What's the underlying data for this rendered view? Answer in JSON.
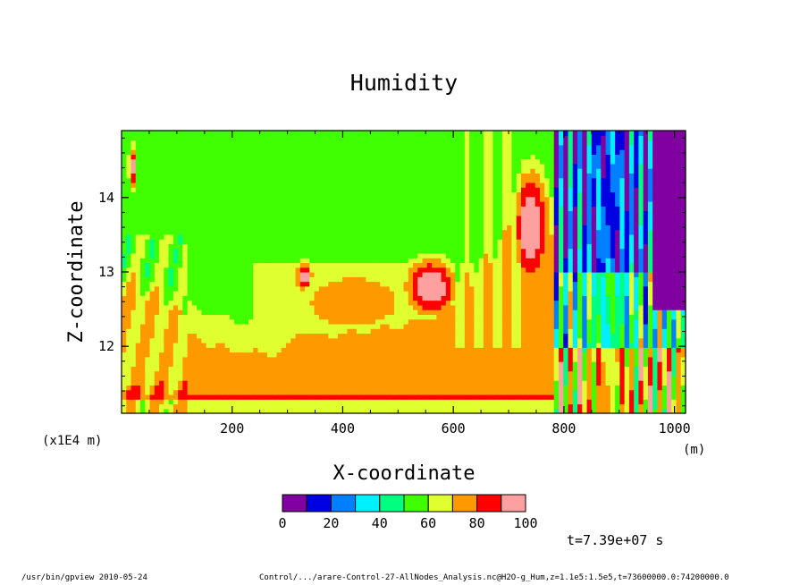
{
  "chart_data": {
    "type": "heatmap",
    "title": "Humidity",
    "xlabel": "X-coordinate",
    "ylabel": "Z-coordinate",
    "x_unit": "(m)",
    "y_unit": "(x1E4 m)",
    "xlim": [
      0,
      1020
    ],
    "ylim": [
      11.1,
      14.9
    ],
    "x_ticks": [
      "200",
      "400",
      "600",
      "800",
      "1000"
    ],
    "y_ticks": [
      "12",
      "13",
      "14"
    ],
    "legend": {
      "levels": [
        0,
        10,
        20,
        30,
        40,
        50,
        60,
        70,
        80,
        90,
        100
      ],
      "labels": [
        "0",
        "20",
        "40",
        "60",
        "80",
        "100"
      ],
      "colors": [
        "#8000a0",
        "#0000e0",
        "#0080ff",
        "#00f0ff",
        "#00ff80",
        "#40ff00",
        "#e0ff30",
        "#ff9900",
        "#ff0000",
        "#ffa0a0"
      ]
    },
    "time_label": "t=7.39e+07 s"
  },
  "footer": {
    "left": "/usr/bin/gpview  2010-05-24",
    "right": "Control/.../arare-Control-27-AllNodes_Analysis.nc@H2O-g_Hum,z=1.1e5:1.5e5,t=73600000.0:74200000.0"
  }
}
